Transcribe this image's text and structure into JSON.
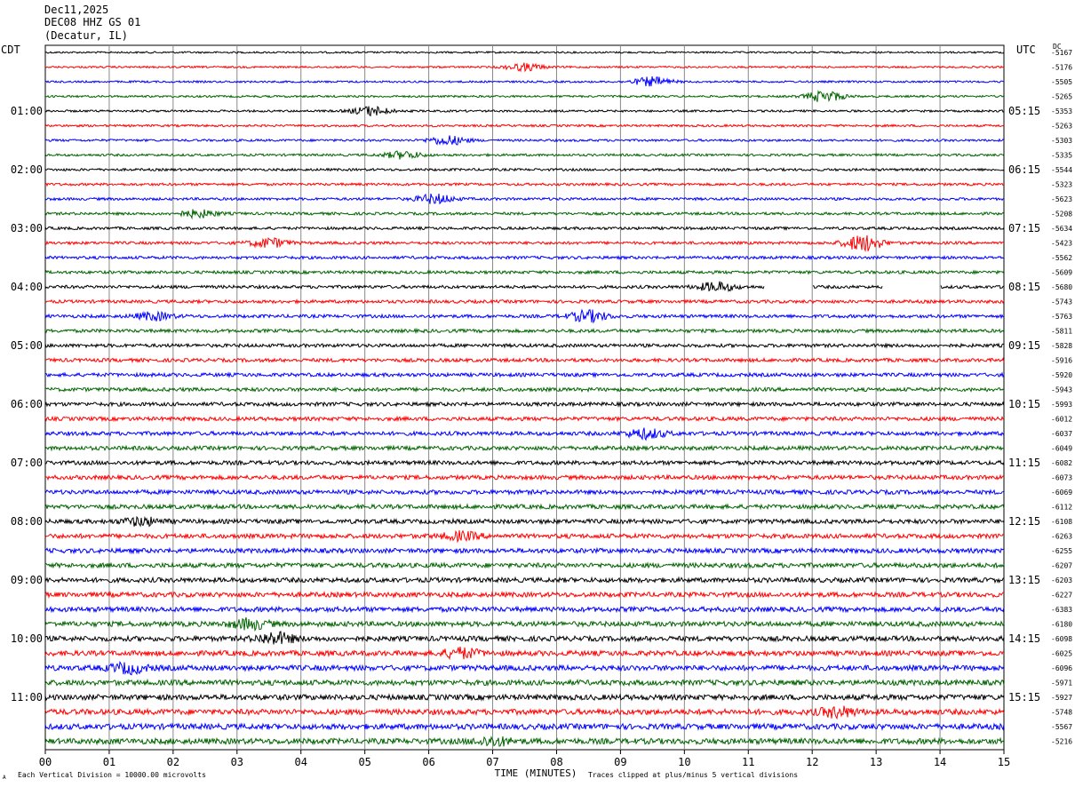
{
  "header": {
    "date": "Dec11,2025",
    "station": "DEC08 HHZ GS 01",
    "location": "(Decatur, IL)"
  },
  "left_timezone": "CDT",
  "right_timezone": "UTC",
  "dc_label": "DC",
  "footer": {
    "scale_note": "Each Vertical Division = 10000.00 microvolts",
    "clip_note": "Traces clipped at plus/minus 5 vertical divisions",
    "corner_mark": "A"
  },
  "colors": {
    "cycle": [
      "#000000",
      "#ff0000",
      "#0000ff",
      "#006400"
    ],
    "grid": "#888888"
  },
  "chart_data": {
    "type": "line",
    "title": "",
    "xlabel": "TIME (MINUTES)",
    "ylabel": "",
    "xlim": [
      0,
      15
    ],
    "x_ticks": [
      "00",
      "01",
      "02",
      "03",
      "04",
      "05",
      "06",
      "07",
      "08",
      "09",
      "10",
      "11",
      "12",
      "13",
      "14",
      "15"
    ],
    "rows_per_hour": 4,
    "left_hour_labels": [
      "01:00",
      "02:00",
      "03:00",
      "04:00",
      "05:00",
      "06:00",
      "07:00",
      "08:00",
      "09:00",
      "10:00",
      "11:00"
    ],
    "right_hour_labels": [
      "05:15",
      "06:15",
      "07:15",
      "08:15",
      "09:15",
      "10:15",
      "11:15",
      "12:15",
      "13:15",
      "14:15",
      "15:15"
    ],
    "dc_offsets": [
      "-5167",
      "-5176",
      "-5505",
      "-5265",
      "-5353",
      "-5263",
      "-5303",
      "-5335",
      "-5544",
      "-5323",
      "-5623",
      "-5208",
      "-5634",
      "-5423",
      "-5562",
      "-5609",
      "-5680",
      "-5743",
      "-5763",
      "-5811",
      "-5828",
      "-5916",
      "-5920",
      "-5943",
      "-5993",
      "-6012",
      "-6037",
      "-6049",
      "-6082",
      "-6073",
      "-6069",
      "-6112",
      "-6108",
      "-6263",
      "-6255",
      "-6207",
      "-6203",
      "-6227",
      "-6383",
      "-6180",
      "-6098",
      "-6025",
      "-6096",
      "-5971",
      "-5927",
      "-5748",
      "-5567",
      "-5216"
    ],
    "events": [
      {
        "row": 1,
        "minute": 7.5,
        "amplitude": 4
      },
      {
        "row": 2,
        "minute": 9.5,
        "amplitude": 5
      },
      {
        "row": 3,
        "minute": 12.2,
        "amplitude": 6
      },
      {
        "row": 4,
        "minute": 5.1,
        "amplitude": 5
      },
      {
        "row": 6,
        "minute": 6.3,
        "amplitude": 5
      },
      {
        "row": 7,
        "minute": 5.6,
        "amplitude": 4
      },
      {
        "row": 10,
        "minute": 6.1,
        "amplitude": 5
      },
      {
        "row": 11,
        "minute": 2.4,
        "amplitude": 4
      },
      {
        "row": 13,
        "minute": 3.5,
        "amplitude": 5
      },
      {
        "row": 13,
        "minute": 12.8,
        "amplitude": 9
      },
      {
        "row": 16,
        "minute": 10.5,
        "amplitude": 5
      },
      {
        "row": 18,
        "minute": 1.7,
        "amplitude": 4
      },
      {
        "row": 18,
        "minute": 8.5,
        "amplitude": 6
      },
      {
        "row": 26,
        "minute": 9.4,
        "amplitude": 5
      },
      {
        "row": 32,
        "minute": 1.5,
        "amplitude": 4
      },
      {
        "row": 33,
        "minute": 6.5,
        "amplitude": 4
      },
      {
        "row": 39,
        "minute": 3.2,
        "amplitude": 5
      },
      {
        "row": 40,
        "minute": 3.6,
        "amplitude": 6
      },
      {
        "row": 41,
        "minute": 6.5,
        "amplitude": 5
      },
      {
        "row": 42,
        "minute": 1.3,
        "amplitude": 5
      },
      {
        "row": 45,
        "minute": 12.4,
        "amplitude": 5
      },
      {
        "row": 47,
        "minute": 7.0,
        "amplitude": 4
      }
    ],
    "gaps": [
      {
        "row": 16,
        "from_minute": 11.25,
        "to_minute": 12.0
      },
      {
        "row": 16,
        "from_minute": 13.1,
        "to_minute": 14.0
      }
    ]
  }
}
